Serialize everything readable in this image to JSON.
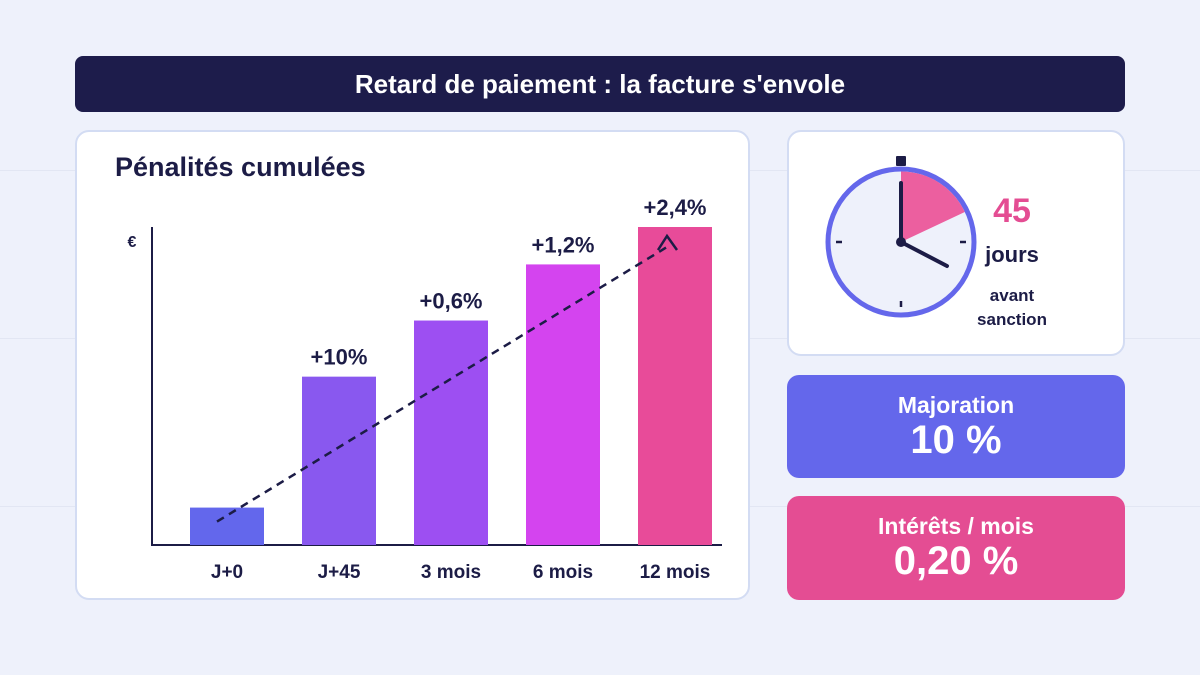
{
  "header": {
    "title": "Retard de paiement : la facture s'envole"
  },
  "chart_data": {
    "type": "bar",
    "title": "Pénalités cumulées",
    "ylabel": "€",
    "xlabel": "",
    "categories": [
      "J+0",
      "J+45",
      "3 mois",
      "6 mois",
      "12 mois"
    ],
    "values": [
      12,
      54,
      72,
      90,
      102
    ],
    "data_labels": [
      "",
      "+10%",
      "+0,6%",
      "+1,2%",
      "+2,4%"
    ],
    "ylim": [
      0,
      102
    ],
    "colors": [
      "#6367ec",
      "#8958ef",
      "#9d4ff2",
      "#d444ef",
      "#e84b99"
    ],
    "trend_line": {
      "style": "dashed",
      "arrow": true
    },
    "grid": false
  },
  "timer": {
    "days": "45",
    "unit": "jours",
    "caption": [
      "avant",
      "sanction"
    ],
    "elapsed_fraction": 0.18,
    "colors": {
      "ring": "#6467eb",
      "face": "#eef1fb",
      "sector": "#ec5f9f",
      "hands": "#1c1c46"
    }
  },
  "stats": {
    "majoration": {
      "label": "Majoration",
      "value": "10 %"
    },
    "interets": {
      "label": "Intérêts / mois",
      "value": "0,20 %"
    }
  }
}
